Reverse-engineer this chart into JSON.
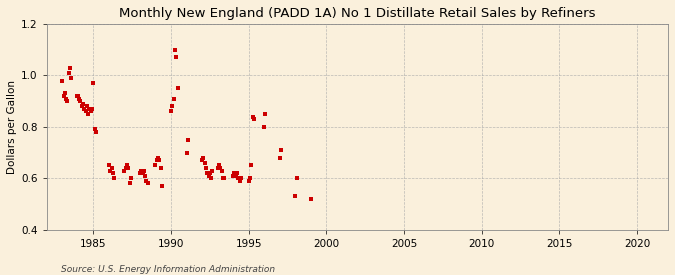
{
  "title": "Monthly New England (PADD 1A) No 1 Distillate Retail Sales by Refiners",
  "ylabel": "Dollars per Gallon",
  "source": "Source: U.S. Energy Information Administration",
  "background_color": "#faf0dc",
  "scatter_color": "#cc0000",
  "xlim": [
    1982,
    2022
  ],
  "ylim": [
    0.4,
    1.2
  ],
  "xticks": [
    1985,
    1990,
    1995,
    2000,
    2005,
    2010,
    2015,
    2020
  ],
  "yticks": [
    0.4,
    0.6,
    0.8,
    1.0,
    1.2
  ],
  "data_x": [
    1983.0,
    1983.08,
    1983.17,
    1983.25,
    1983.33,
    1983.42,
    1983.5,
    1983.58,
    1983.92,
    1984.0,
    1984.08,
    1984.17,
    1984.25,
    1984.33,
    1984.42,
    1984.5,
    1984.58,
    1984.67,
    1984.75,
    1984.83,
    1984.92,
    1985.0,
    1985.08,
    1985.17,
    1986.0,
    1986.08,
    1986.17,
    1986.25,
    1986.33,
    1987.0,
    1987.08,
    1987.17,
    1987.25,
    1987.33,
    1987.42,
    1988.0,
    1988.08,
    1988.17,
    1988.25,
    1988.33,
    1988.42,
    1988.5,
    1989.0,
    1989.08,
    1989.17,
    1989.25,
    1989.33,
    1989.42,
    1990.0,
    1990.08,
    1990.17,
    1990.25,
    1990.33,
    1990.42,
    1991.0,
    1991.08,
    1992.0,
    1992.08,
    1992.17,
    1992.25,
    1992.33,
    1992.42,
    1992.5,
    1992.58,
    1992.67,
    1993.0,
    1993.08,
    1993.17,
    1993.25,
    1993.33,
    1993.42,
    1994.0,
    1994.08,
    1994.17,
    1994.25,
    1994.33,
    1994.42,
    1994.5,
    1995.0,
    1995.08,
    1995.17,
    1995.25,
    1995.33,
    1996.0,
    1996.08,
    1997.0,
    1997.08,
    1998.0,
    1998.08,
    1999.0
  ],
  "data_y": [
    0.98,
    0.92,
    0.93,
    0.91,
    0.9,
    1.01,
    1.03,
    0.99,
    0.92,
    0.92,
    0.91,
    0.9,
    0.88,
    0.89,
    0.87,
    0.86,
    0.88,
    0.85,
    0.87,
    0.86,
    0.87,
    0.97,
    0.79,
    0.78,
    0.65,
    0.63,
    0.64,
    0.62,
    0.6,
    0.63,
    0.64,
    0.65,
    0.64,
    0.58,
    0.6,
    0.62,
    0.63,
    0.62,
    0.63,
    0.61,
    0.59,
    0.58,
    0.65,
    0.67,
    0.68,
    0.67,
    0.64,
    0.57,
    0.86,
    0.88,
    0.91,
    1.1,
    1.07,
    0.95,
    0.7,
    0.75,
    0.67,
    0.68,
    0.66,
    0.64,
    0.62,
    0.61,
    0.62,
    0.6,
    0.63,
    0.64,
    0.65,
    0.64,
    0.63,
    0.6,
    0.6,
    0.61,
    0.62,
    0.61,
    0.62,
    0.6,
    0.59,
    0.6,
    0.59,
    0.6,
    0.65,
    0.84,
    0.83,
    0.8,
    0.85,
    0.68,
    0.71,
    0.53,
    0.6,
    0.52
  ],
  "title_fontsize": 9.5,
  "ylabel_fontsize": 7.5,
  "tick_fontsize": 7.5,
  "source_fontsize": 6.5
}
